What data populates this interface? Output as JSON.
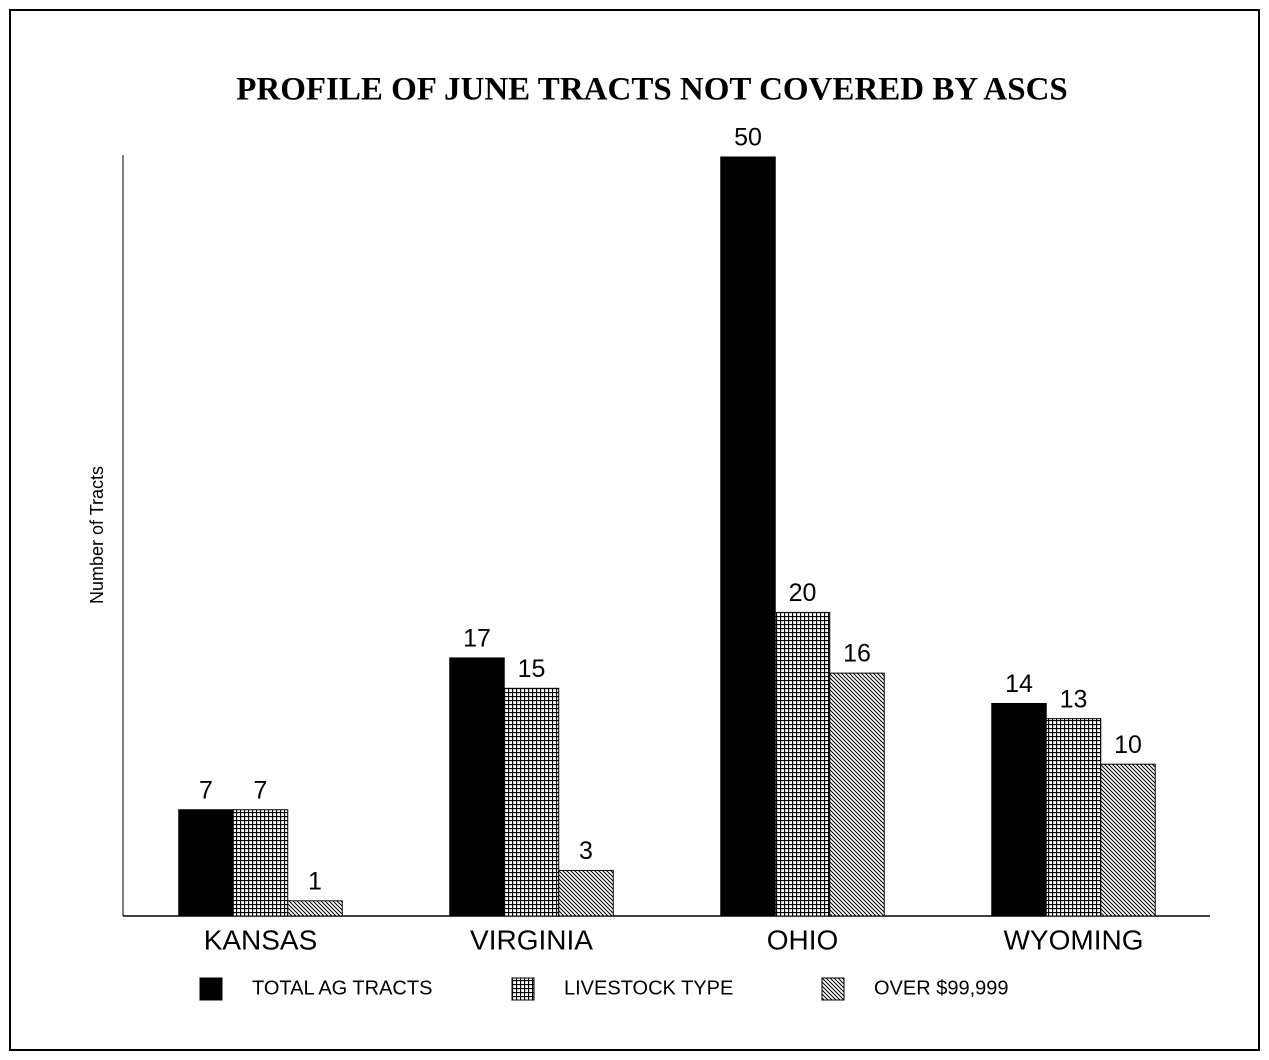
{
  "chart_data": {
    "type": "bar",
    "title": "PROFILE OF JUNE TRACTS NOT COVERED BY ASCS",
    "y_label": "Number of Tracts",
    "categories": [
      "KANSAS",
      "VIRGINIA",
      "OHIO",
      "WYOMING"
    ],
    "series": [
      {
        "name": "TOTAL AG TRACTS",
        "color": "#000000",
        "pattern": "solid",
        "values": [
          7,
          17,
          50,
          14
        ]
      },
      {
        "name": "LIVESTOCK TYPE",
        "color": "#000000",
        "pattern": "grid",
        "values": [
          7,
          15,
          20,
          13
        ]
      },
      {
        "name": "OVER $99,999",
        "color": "#000000",
        "pattern": "hatch",
        "values": [
          1,
          3,
          16,
          10
        ]
      }
    ],
    "ylim": [
      0,
      50
    ],
    "legend": "bottom"
  }
}
